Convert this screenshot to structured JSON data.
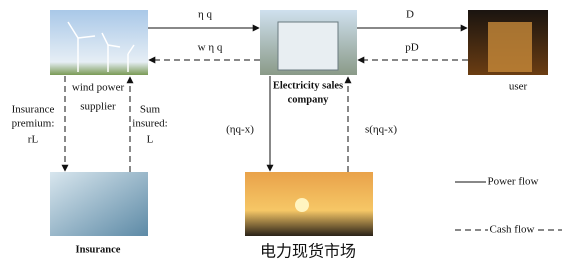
{
  "nodes": [
    {
      "label": [
        "wind power",
        "supplier"
      ]
    },
    {
      "label": [
        "Electricity sales",
        "company"
      ]
    },
    {
      "label": [
        "user"
      ]
    },
    {
      "label": [
        "Insurance"
      ]
    },
    {
      "label": [
        "电力现货市场"
      ]
    }
  ],
  "edges": [
    {
      "label": [
        "η q"
      ]
    },
    {
      "label": [
        "w η q"
      ]
    },
    {
      "label": [
        "D"
      ]
    },
    {
      "label": [
        "pD"
      ]
    },
    {
      "label": [
        "Insurance",
        "premium:",
        "rL"
      ]
    },
    {
      "label": [
        "Sum",
        "insured:",
        "L"
      ]
    },
    {
      "label": [
        "(ηq-x)"
      ]
    },
    {
      "label": [
        "s(ηq-x)"
      ]
    }
  ],
  "legend": [
    "Power flow",
    "Cash flow"
  ]
}
